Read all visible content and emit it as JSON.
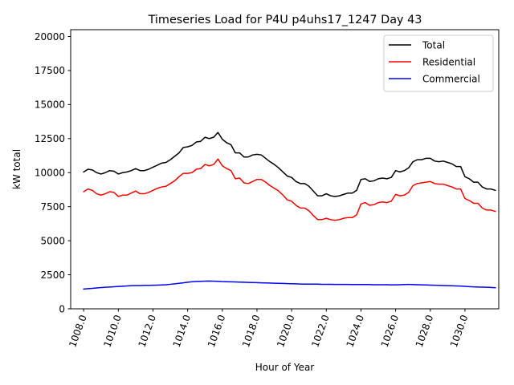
{
  "chart_data": {
    "type": "line",
    "title": "Timeseries Load for P4U p4uhs17_1247  Day 43",
    "xlabel": "Hour of Year",
    "ylabel": "kW total",
    "xlim": [
      1007.25,
      1031.95
    ],
    "ylim": [
      0,
      20500
    ],
    "xticks": [
      1008,
      1010,
      1012,
      1014,
      1016,
      1018,
      1020,
      1022,
      1024,
      1026,
      1028,
      1030
    ],
    "xtick_labels": [
      "1008.0",
      "1010.0",
      "1012.0",
      "1014.0",
      "1016.0",
      "1018.0",
      "1020.0",
      "1022.0",
      "1024.0",
      "1026.0",
      "1028.0",
      "1030.0"
    ],
    "yticks": [
      0,
      2500,
      5000,
      7500,
      10000,
      12500,
      15000,
      17500,
      20000
    ],
    "ytick_labels": [
      "0",
      "2500",
      "5000",
      "7500",
      "10000",
      "12500",
      "15000",
      "17500",
      "20000"
    ],
    "legend_position": "top-right",
    "x_start": 1008.0,
    "x_step": 0.25,
    "series": [
      {
        "name": "Total",
        "color": "#000000",
        "values": [
          10050,
          10250,
          10200,
          10000,
          9900,
          10000,
          10150,
          10100,
          9900,
          10000,
          10050,
          10150,
          10300,
          10150,
          10150,
          10250,
          10400,
          10550,
          10700,
          10750,
          10950,
          11200,
          11450,
          11850,
          11900,
          12000,
          12250,
          12300,
          12600,
          12500,
          12600,
          12950,
          12450,
          12200,
          12050,
          11450,
          11450,
          11150,
          11150,
          11300,
          11350,
          11300,
          11050,
          10800,
          10600,
          10350,
          10050,
          9750,
          9650,
          9350,
          9200,
          9200,
          9000,
          8650,
          8300,
          8300,
          8450,
          8300,
          8250,
          8300,
          8400,
          8500,
          8500,
          8700,
          9500,
          9550,
          9350,
          9400,
          9550,
          9600,
          9550,
          9650,
          10150,
          10050,
          10150,
          10350,
          10800,
          10950,
          10950,
          11050,
          11050,
          10850,
          10800,
          10850,
          10750,
          10650,
          10450,
          10450,
          9700,
          9550,
          9300,
          9300,
          8950,
          8800,
          8800,
          8700
        ]
      },
      {
        "name": "Residential",
        "color": "#ff0000",
        "values": [
          8600,
          8800,
          8700,
          8450,
          8350,
          8450,
          8600,
          8550,
          8250,
          8350,
          8350,
          8500,
          8650,
          8450,
          8450,
          8550,
          8700,
          8850,
          8950,
          9000,
          9200,
          9400,
          9700,
          9950,
          9950,
          10000,
          10250,
          10300,
          10600,
          10500,
          10600,
          11000,
          10500,
          10300,
          10150,
          9550,
          9600,
          9250,
          9200,
          9350,
          9500,
          9500,
          9300,
          9050,
          8850,
          8650,
          8350,
          8000,
          7900,
          7600,
          7400,
          7400,
          7200,
          6850,
          6550,
          6550,
          6650,
          6550,
          6500,
          6550,
          6650,
          6700,
          6700,
          6900,
          7700,
          7800,
          7600,
          7650,
          7800,
          7850,
          7800,
          7900,
          8400,
          8300,
          8350,
          8550,
          9050,
          9200,
          9250,
          9300,
          9350,
          9200,
          9150,
          9150,
          9050,
          8950,
          8800,
          8800,
          8100,
          7950,
          7750,
          7750,
          7400,
          7250,
          7250,
          7150
        ]
      },
      {
        "name": "Commercial",
        "color": "#0000ff",
        "values": [
          1450,
          1480,
          1500,
          1530,
          1560,
          1580,
          1600,
          1620,
          1640,
          1660,
          1680,
          1700,
          1710,
          1710,
          1720,
          1720,
          1730,
          1740,
          1750,
          1770,
          1800,
          1830,
          1870,
          1910,
          1950,
          1990,
          2010,
          2020,
          2030,
          2040,
          2030,
          2020,
          2000,
          1990,
          1980,
          1970,
          1960,
          1950,
          1940,
          1930,
          1920,
          1910,
          1900,
          1890,
          1880,
          1870,
          1860,
          1850,
          1840,
          1830,
          1820,
          1810,
          1810,
          1810,
          1810,
          1800,
          1800,
          1800,
          1790,
          1790,
          1790,
          1790,
          1780,
          1780,
          1780,
          1780,
          1780,
          1770,
          1770,
          1770,
          1770,
          1760,
          1760,
          1770,
          1780,
          1790,
          1780,
          1770,
          1760,
          1750,
          1740,
          1730,
          1720,
          1710,
          1700,
          1690,
          1680,
          1670,
          1650,
          1630,
          1610,
          1600,
          1590,
          1580,
          1570,
          1550
        ]
      }
    ]
  }
}
